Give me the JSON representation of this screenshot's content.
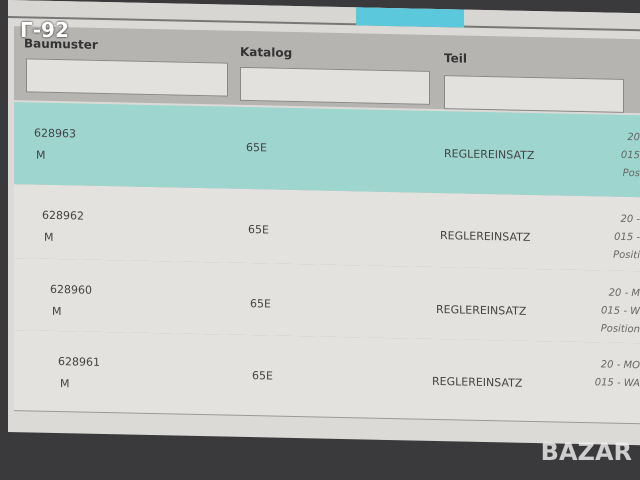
{
  "watermark": "Г-92",
  "logo": "BAZAR",
  "filters": [
    {
      "label": "Baumuster"
    },
    {
      "label": "Katalog"
    },
    {
      "label": "Teil"
    }
  ],
  "rows": [
    {
      "baumuster": "628963",
      "suffix": "M",
      "katalog": "65E",
      "teil": "REGLEREINSATZ",
      "meta": [
        "20",
        "015",
        "Pos"
      ],
      "selected": true
    },
    {
      "baumuster": "628962",
      "suffix": "M",
      "katalog": "65E",
      "teil": "REGLEREINSATZ",
      "meta": [
        "20 -",
        "015 -",
        "Positi"
      ],
      "selected": false
    },
    {
      "baumuster": "628960",
      "suffix": "M",
      "katalog": "65E",
      "teil": "REGLEREINSATZ",
      "meta": [
        "20 - M",
        "015 - W",
        "Position"
      ],
      "selected": false
    },
    {
      "baumuster": "628961",
      "suffix": "M",
      "katalog": "65E",
      "teil": "REGLEREINSATZ",
      "meta": [
        "20 - MO",
        "015 - WA"
      ],
      "selected": false
    }
  ],
  "colors": {
    "selected_row": "#9ed6cf",
    "active_tab": "#5cc8dc"
  }
}
